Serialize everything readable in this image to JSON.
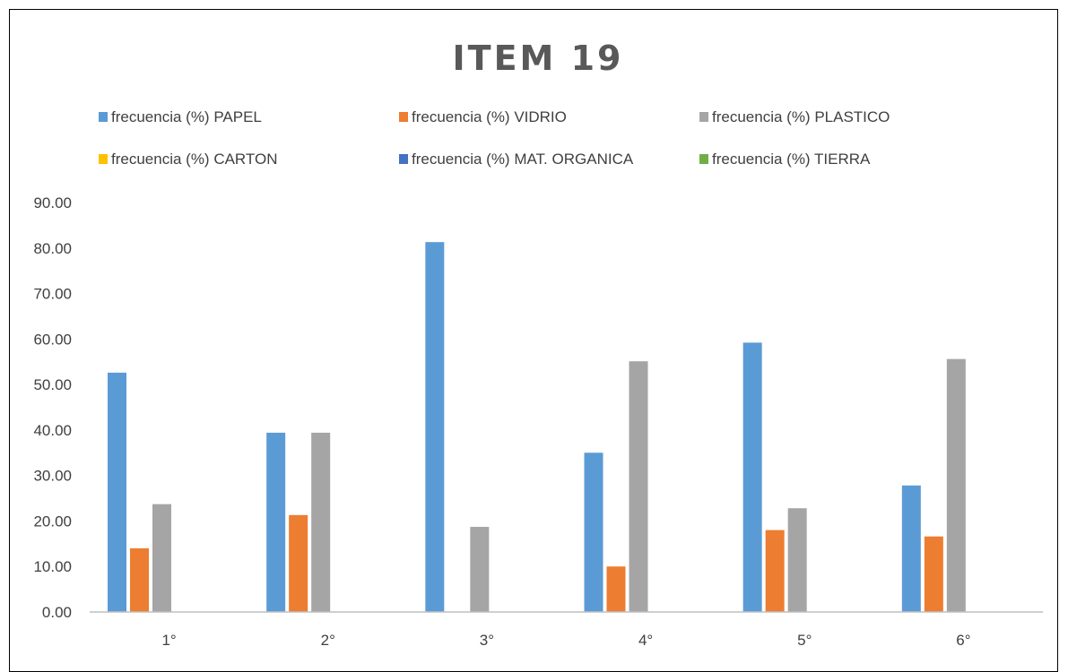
{
  "chart_data": {
    "type": "bar",
    "title": "ITEM 19",
    "categories": [
      "1°",
      "2°",
      "3°",
      "4°",
      "5°",
      "6°"
    ],
    "series": [
      {
        "name": "frecuencia (%) PAPEL",
        "color": "#5B9BD5",
        "values": [
          52.6,
          39.4,
          81.3,
          35.0,
          59.2,
          27.8
        ]
      },
      {
        "name": "frecuencia (%) VIDRIO",
        "color": "#ED7D31",
        "values": [
          14.0,
          21.3,
          0,
          10.0,
          18.0,
          16.6
        ]
      },
      {
        "name": "frecuencia (%) PLASTICO",
        "color": "#A5A5A5",
        "values": [
          23.7,
          39.4,
          18.7,
          55.1,
          22.8,
          55.6
        ]
      },
      {
        "name": "frecuencia (%) CARTON",
        "color": "#FFC000",
        "values": [
          0,
          0,
          0,
          0,
          0,
          0
        ]
      },
      {
        "name": "frecuencia (%) MAT. ORGANICA",
        "color": "#4472C4",
        "values": [
          0,
          0,
          0,
          0,
          0,
          0
        ]
      },
      {
        "name": "frecuencia (%)  TIERRA",
        "color": "#70AD47",
        "values": [
          0,
          0,
          0,
          0,
          0,
          0
        ]
      }
    ],
    "ylim": [
      0,
      90
    ],
    "yticks": [
      "0.00",
      "10.00",
      "20.00",
      "30.00",
      "40.00",
      "50.00",
      "60.00",
      "70.00",
      "80.00",
      "90.00"
    ],
    "xlabel": "",
    "ylabel": "",
    "legend_position": "top",
    "grid": false
  }
}
